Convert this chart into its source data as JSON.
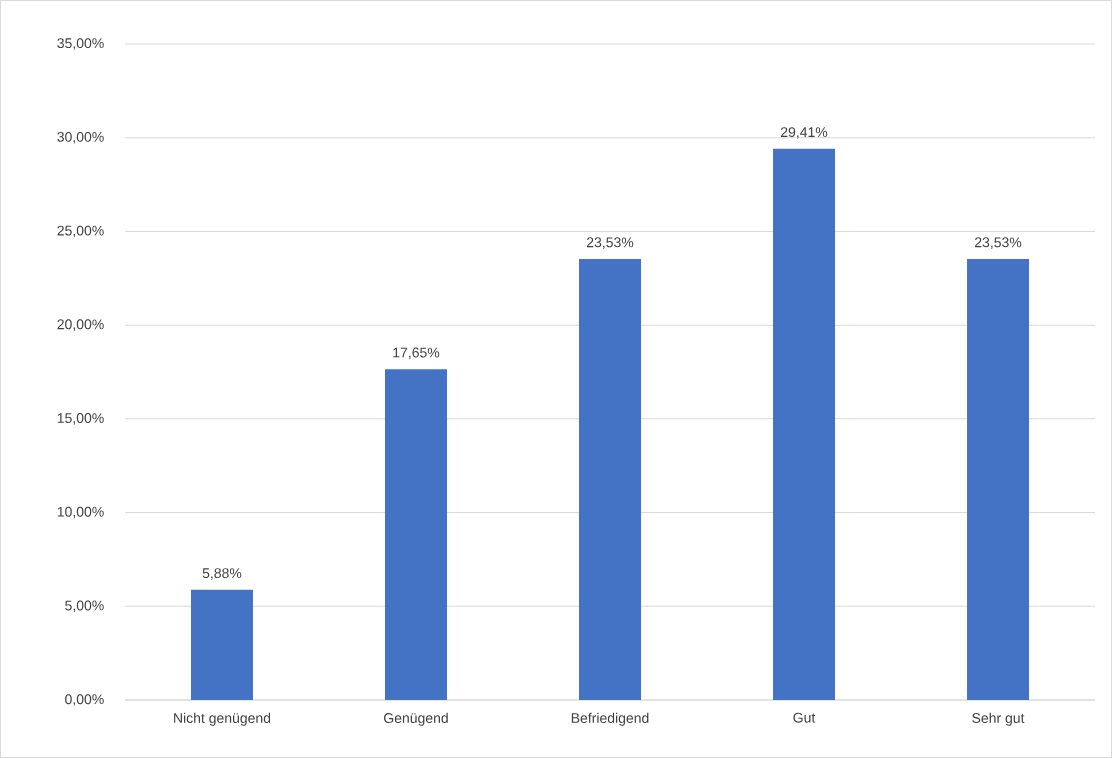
{
  "chart_data": {
    "type": "bar",
    "categories": [
      "Nicht genügend",
      "Genügend",
      "Befriedigend",
      "Gut",
      "Sehr gut"
    ],
    "values": [
      5.88,
      17.65,
      23.53,
      29.41,
      23.53
    ],
    "value_labels": [
      "5,88%",
      "17,65%",
      "23,53%",
      "29,41%",
      "23,53%"
    ],
    "color": "#4472c4",
    "ylim": [
      0,
      35
    ],
    "yticks": [
      {
        "value": 0,
        "label": "0,00%"
      },
      {
        "value": 5,
        "label": "5,00%"
      },
      {
        "value": 10,
        "label": "10,00%"
      },
      {
        "value": 15,
        "label": "15,00%"
      },
      {
        "value": 20,
        "label": "20,00%"
      },
      {
        "value": 25,
        "label": "25,00%"
      },
      {
        "value": 30,
        "label": "30,00%"
      },
      {
        "value": 35,
        "label": "35,00%"
      }
    ],
    "grid": "y"
  }
}
